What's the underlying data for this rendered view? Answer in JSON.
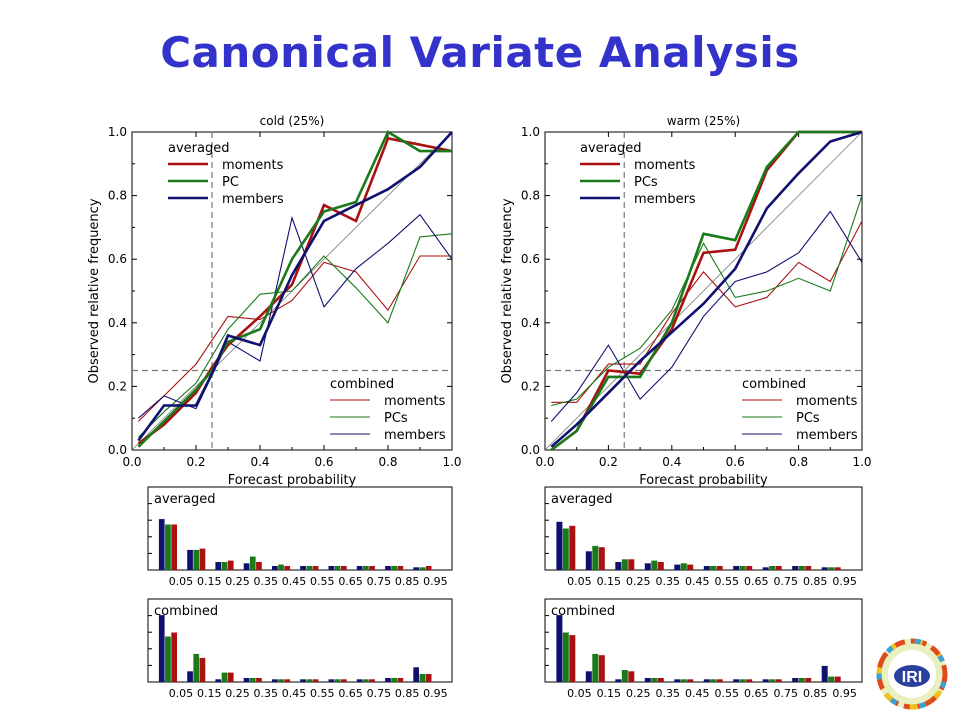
{
  "slide": {
    "title": "Canonical Variate Analysis"
  },
  "logo": {
    "text": "IRI"
  },
  "colors": {
    "members": "#101070",
    "pc": "#1a7a1a",
    "moments": "#aa1111",
    "title": "#3333cc"
  },
  "chart_data": [
    {
      "type": "line",
      "title": "cold (25%)",
      "xlabel": "Forecast probability",
      "ylabel": "Observed relative frequency",
      "xlim": [
        0,
        1
      ],
      "ylim": [
        0,
        1
      ],
      "xticks": [
        "0.0",
        "0.2",
        "0.4",
        "0.6",
        "0.8",
        "1.0"
      ],
      "yticks": [
        "0.0",
        "0.2",
        "0.4",
        "0.6",
        "0.8",
        "1.0"
      ],
      "climatology": 0.25,
      "legend_averaged": {
        "header": "averaged",
        "labels": [
          "moments",
          "PC",
          "members"
        ]
      },
      "legend_combined": {
        "header": "combined",
        "labels": [
          "moments",
          "PCs",
          "members"
        ]
      },
      "averaged": {
        "moments": [
          [
            0.02,
            0.02
          ],
          [
            0.1,
            0.08
          ],
          [
            0.2,
            0.18
          ],
          [
            0.25,
            0.26
          ],
          [
            0.3,
            0.33
          ],
          [
            0.4,
            0.42
          ],
          [
            0.5,
            0.52
          ],
          [
            0.6,
            0.77
          ],
          [
            0.7,
            0.72
          ],
          [
            0.8,
            0.98
          ],
          [
            0.9,
            0.96
          ],
          [
            1.0,
            0.94
          ]
        ],
        "pc": [
          [
            0.02,
            0.01
          ],
          [
            0.1,
            0.09
          ],
          [
            0.2,
            0.19
          ],
          [
            0.25,
            0.25
          ],
          [
            0.3,
            0.34
          ],
          [
            0.4,
            0.38
          ],
          [
            0.5,
            0.6
          ],
          [
            0.6,
            0.75
          ],
          [
            0.7,
            0.78
          ],
          [
            0.8,
            1.0
          ],
          [
            0.9,
            0.94
          ],
          [
            1.0,
            0.94
          ]
        ],
        "members": [
          [
            0.02,
            0.03
          ],
          [
            0.1,
            0.14
          ],
          [
            0.2,
            0.14
          ],
          [
            0.25,
            0.24
          ],
          [
            0.3,
            0.36
          ],
          [
            0.4,
            0.33
          ],
          [
            0.5,
            0.55
          ],
          [
            0.6,
            0.72
          ],
          [
            0.7,
            0.77
          ],
          [
            0.8,
            0.82
          ],
          [
            0.9,
            0.89
          ],
          [
            1.0,
            1.0
          ]
        ]
      },
      "combined": {
        "moments": [
          [
            0.02,
            0.09
          ],
          [
            0.1,
            0.17
          ],
          [
            0.2,
            0.27
          ],
          [
            0.3,
            0.42
          ],
          [
            0.4,
            0.41
          ],
          [
            0.5,
            0.47
          ],
          [
            0.6,
            0.59
          ],
          [
            0.7,
            0.56
          ],
          [
            0.8,
            0.44
          ],
          [
            0.9,
            0.61
          ],
          [
            1.0,
            0.61
          ]
        ],
        "pcs": [
          [
            0.02,
            0.04
          ],
          [
            0.1,
            0.12
          ],
          [
            0.2,
            0.21
          ],
          [
            0.3,
            0.38
          ],
          [
            0.4,
            0.49
          ],
          [
            0.5,
            0.5
          ],
          [
            0.6,
            0.61
          ],
          [
            0.7,
            0.51
          ],
          [
            0.8,
            0.4
          ],
          [
            0.9,
            0.67
          ],
          [
            1.0,
            0.68
          ]
        ],
        "members": [
          [
            0.02,
            0.1
          ],
          [
            0.1,
            0.17
          ],
          [
            0.2,
            0.13
          ],
          [
            0.3,
            0.34
          ],
          [
            0.4,
            0.28
          ],
          [
            0.5,
            0.73
          ],
          [
            0.6,
            0.45
          ],
          [
            0.7,
            0.57
          ],
          [
            0.8,
            0.65
          ],
          [
            0.9,
            0.74
          ],
          [
            1.0,
            0.6
          ]
        ]
      },
      "histograms": [
        {
          "label": "averaged",
          "categories": [
            "0.05",
            "0.15",
            "0.25",
            "0.35",
            "0.45",
            "0.55",
            "0.65",
            "0.75",
            "0.85",
            "0.95"
          ],
          "series": [
            {
              "name": "members",
              "values": [
                0.38,
                0.15,
                0.06,
                0.05,
                0.03,
                0.03,
                0.03,
                0.03,
                0.03,
                0.02
              ]
            },
            {
              "name": "PC",
              "values": [
                0.34,
                0.15,
                0.06,
                0.1,
                0.04,
                0.03,
                0.03,
                0.03,
                0.03,
                0.02
              ]
            },
            {
              "name": "moments",
              "values": [
                0.34,
                0.16,
                0.07,
                0.06,
                0.03,
                0.03,
                0.03,
                0.03,
                0.03,
                0.03
              ]
            }
          ]
        },
        {
          "label": "combined",
          "categories": [
            "0.05",
            "0.15",
            "0.25",
            "0.35",
            "0.45",
            "0.55",
            "0.65",
            "0.75",
            "0.85",
            "0.95"
          ],
          "series": [
            {
              "name": "members",
              "values": [
                0.5,
                0.08,
                0.02,
                0.03,
                0.02,
                0.02,
                0.02,
                0.02,
                0.03,
                0.11
              ]
            },
            {
              "name": "PCs",
              "values": [
                0.34,
                0.21,
                0.07,
                0.03,
                0.02,
                0.02,
                0.02,
                0.02,
                0.03,
                0.06
              ]
            },
            {
              "name": "moments",
              "values": [
                0.37,
                0.18,
                0.07,
                0.03,
                0.02,
                0.02,
                0.02,
                0.02,
                0.03,
                0.06
              ]
            }
          ]
        }
      ]
    },
    {
      "type": "line",
      "title": "warm (25%)",
      "xlabel": "Forecast probability",
      "ylabel": "Observed relative frequency",
      "xlim": [
        0,
        1
      ],
      "ylim": [
        0,
        1
      ],
      "xticks": [
        "0.0",
        "0.2",
        "0.4",
        "0.6",
        "0.8",
        "1.0"
      ],
      "yticks": [
        "0.0",
        "0.2",
        "0.4",
        "0.6",
        "0.8",
        "1.0"
      ],
      "climatology": 0.25,
      "legend_averaged": {
        "header": "averaged",
        "labels": [
          "moments",
          "PCs",
          "members"
        ]
      },
      "legend_combined": {
        "header": "combined",
        "labels": [
          "moments",
          "PCs",
          "members"
        ]
      },
      "averaged": {
        "moments": [
          [
            0.02,
            0.0
          ],
          [
            0.1,
            0.06
          ],
          [
            0.2,
            0.25
          ],
          [
            0.3,
            0.24
          ],
          [
            0.4,
            0.38
          ],
          [
            0.5,
            0.62
          ],
          [
            0.6,
            0.63
          ],
          [
            0.7,
            0.88
          ],
          [
            0.8,
            1.0
          ],
          [
            0.9,
            1.0
          ],
          [
            1.0,
            1.0
          ]
        ],
        "pc": [
          [
            0.02,
            0.0
          ],
          [
            0.1,
            0.06
          ],
          [
            0.2,
            0.23
          ],
          [
            0.3,
            0.23
          ],
          [
            0.4,
            0.4
          ],
          [
            0.5,
            0.68
          ],
          [
            0.6,
            0.66
          ],
          [
            0.7,
            0.89
          ],
          [
            0.8,
            1.0
          ],
          [
            0.9,
            1.0
          ],
          [
            1.0,
            1.0
          ]
        ],
        "members": [
          [
            0.02,
            0.01
          ],
          [
            0.1,
            0.08
          ],
          [
            0.2,
            0.18
          ],
          [
            0.3,
            0.28
          ],
          [
            0.4,
            0.37
          ],
          [
            0.5,
            0.46
          ],
          [
            0.6,
            0.57
          ],
          [
            0.7,
            0.76
          ],
          [
            0.8,
            0.87
          ],
          [
            0.9,
            0.97
          ],
          [
            1.0,
            1.0
          ]
        ]
      },
      "combined": {
        "moments": [
          [
            0.02,
            0.15
          ],
          [
            0.1,
            0.15
          ],
          [
            0.2,
            0.27
          ],
          [
            0.3,
            0.27
          ],
          [
            0.4,
            0.43
          ],
          [
            0.5,
            0.56
          ],
          [
            0.6,
            0.45
          ],
          [
            0.7,
            0.48
          ],
          [
            0.8,
            0.59
          ],
          [
            0.9,
            0.53
          ],
          [
            1.0,
            0.72
          ]
        ],
        "pcs": [
          [
            0.02,
            0.14
          ],
          [
            0.1,
            0.16
          ],
          [
            0.2,
            0.26
          ],
          [
            0.3,
            0.32
          ],
          [
            0.4,
            0.44
          ],
          [
            0.5,
            0.65
          ],
          [
            0.6,
            0.48
          ],
          [
            0.7,
            0.5
          ],
          [
            0.8,
            0.54
          ],
          [
            0.9,
            0.5
          ],
          [
            1.0,
            0.8
          ]
        ],
        "members": [
          [
            0.02,
            0.09
          ],
          [
            0.1,
            0.18
          ],
          [
            0.2,
            0.33
          ],
          [
            0.3,
            0.16
          ],
          [
            0.4,
            0.26
          ],
          [
            0.5,
            0.42
          ],
          [
            0.6,
            0.53
          ],
          [
            0.7,
            0.56
          ],
          [
            0.8,
            0.62
          ],
          [
            0.9,
            0.75
          ],
          [
            1.0,
            0.59
          ]
        ]
      },
      "histograms": [
        {
          "label": "averaged",
          "categories": [
            "0.05",
            "0.15",
            "0.25",
            "0.35",
            "0.45",
            "0.55",
            "0.65",
            "0.75",
            "0.85",
            "0.95"
          ],
          "series": [
            {
              "name": "members",
              "values": [
                0.36,
                0.14,
                0.06,
                0.05,
                0.04,
                0.03,
                0.03,
                0.02,
                0.03,
                0.02
              ]
            },
            {
              "name": "PCs",
              "values": [
                0.31,
                0.18,
                0.08,
                0.07,
                0.05,
                0.03,
                0.03,
                0.03,
                0.03,
                0.02
              ]
            },
            {
              "name": "moments",
              "values": [
                0.33,
                0.17,
                0.08,
                0.06,
                0.04,
                0.03,
                0.03,
                0.03,
                0.03,
                0.02
              ]
            }
          ]
        },
        {
          "label": "combined",
          "categories": [
            "0.05",
            "0.15",
            "0.25",
            "0.35",
            "0.45",
            "0.55",
            "0.65",
            "0.75",
            "0.85",
            "0.95"
          ],
          "series": [
            {
              "name": "members",
              "values": [
                0.5,
                0.08,
                0.02,
                0.03,
                0.02,
                0.02,
                0.02,
                0.02,
                0.03,
                0.12
              ]
            },
            {
              "name": "PCs",
              "values": [
                0.37,
                0.21,
                0.09,
                0.03,
                0.02,
                0.02,
                0.02,
                0.02,
                0.03,
                0.04
              ]
            },
            {
              "name": "moments",
              "values": [
                0.35,
                0.2,
                0.08,
                0.03,
                0.02,
                0.02,
                0.02,
                0.02,
                0.03,
                0.04
              ]
            }
          ]
        }
      ]
    }
  ]
}
